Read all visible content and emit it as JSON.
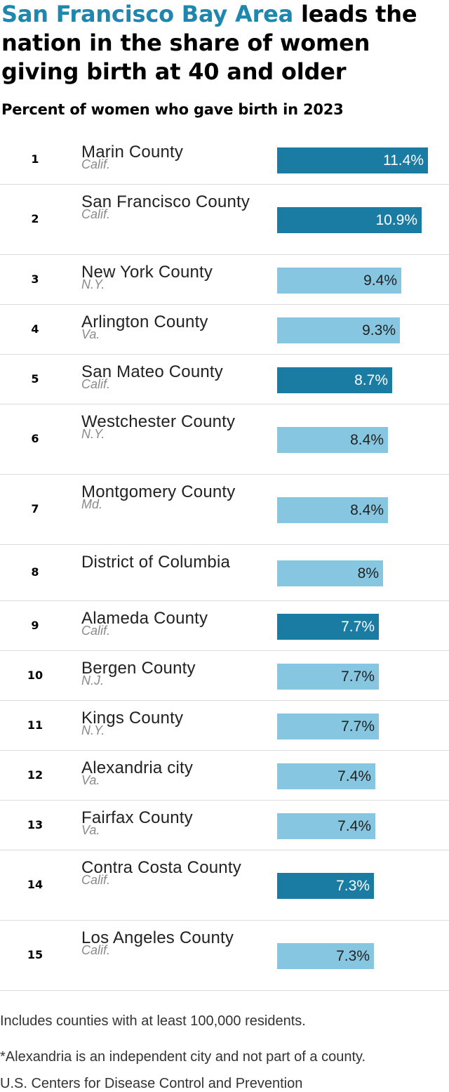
{
  "headline": {
    "accent": "San Francisco Bay Area",
    "rest": " leads the nation in the share of women giving birth at 40 and older"
  },
  "subtitle": "Percent of women who gave birth in 2023",
  "colors": {
    "bay_area": "#1a7ba3",
    "other": "#86c6e0",
    "bay_text": "#ffffff",
    "other_text": "#222222"
  },
  "chart_data": {
    "type": "bar",
    "orientation": "horizontal",
    "title": "Percent of women who gave birth in 2023",
    "value_suffix": "%",
    "xlim": [
      0,
      11.4
    ],
    "rows": [
      {
        "rank": "1",
        "county": "Marin County",
        "state": "Calif.",
        "value": 11.4,
        "label": "11.4%",
        "bay_area": true
      },
      {
        "rank": "2",
        "county": "San Francisco County",
        "state": "Calif.",
        "value": 10.9,
        "label": "10.9%",
        "bay_area": true
      },
      {
        "rank": "3",
        "county": "New York County",
        "state": "N.Y.",
        "value": 9.4,
        "label": "9.4%",
        "bay_area": false
      },
      {
        "rank": "4",
        "county": "Arlington County",
        "state": "Va.",
        "value": 9.3,
        "label": "9.3%",
        "bay_area": false
      },
      {
        "rank": "5",
        "county": "San Mateo County",
        "state": "Calif.",
        "value": 8.7,
        "label": "8.7%",
        "bay_area": true
      },
      {
        "rank": "6",
        "county": "Westchester County",
        "state": "N.Y.",
        "value": 8.4,
        "label": "8.4%",
        "bay_area": false
      },
      {
        "rank": "7",
        "county": "Montgomery County",
        "state": "Md.",
        "value": 8.4,
        "label": "8.4%",
        "bay_area": false
      },
      {
        "rank": "8",
        "county": "District of Columbia",
        "state": "",
        "value": 8.0,
        "label": "8%",
        "bay_area": false
      },
      {
        "rank": "9",
        "county": "Alameda County",
        "state": "Calif.",
        "value": 7.7,
        "label": "7.7%",
        "bay_area": true
      },
      {
        "rank": "10",
        "county": "Bergen County",
        "state": "N.J.",
        "value": 7.7,
        "label": "7.7%",
        "bay_area": false
      },
      {
        "rank": "11",
        "county": "Kings County",
        "state": "N.Y.",
        "value": 7.7,
        "label": "7.7%",
        "bay_area": false
      },
      {
        "rank": "12",
        "county": "Alexandria city",
        "state": "Va.",
        "value": 7.4,
        "label": "7.4%",
        "bay_area": false
      },
      {
        "rank": "13",
        "county": "Fairfax County",
        "state": "Va.",
        "value": 7.4,
        "label": "7.4%",
        "bay_area": false
      },
      {
        "rank": "14",
        "county": "Contra Costa County",
        "state": "Calif.",
        "value": 7.3,
        "label": "7.3%",
        "bay_area": true
      },
      {
        "rank": "15",
        "county": "Los Angeles County",
        "state": "Calif.",
        "value": 7.3,
        "label": "7.3%",
        "bay_area": false
      }
    ]
  },
  "notes": {
    "counties": "Includes counties with at least 100,000 residents.",
    "alexandria": "*Alexandria is an independent city and not part of a county.",
    "source": "U.S. Centers for Disease Control and Prevention"
  }
}
